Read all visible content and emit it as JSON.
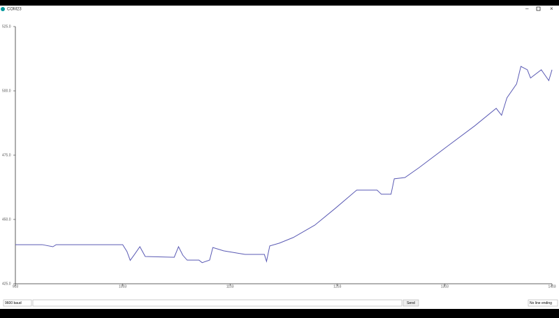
{
  "window_title": "COM23",
  "chart_data": {
    "type": "line",
    "x": [
      903,
      928,
      938,
      941,
      967,
      1003,
      1007,
      1010,
      1014,
      1019,
      1024,
      1051,
      1055,
      1059,
      1063,
      1074,
      1077,
      1084,
      1087,
      1097,
      1117,
      1135,
      1137,
      1140,
      1149,
      1162,
      1182,
      1201,
      1221,
      1240,
      1244,
      1253,
      1256,
      1266,
      1279,
      1305,
      1331,
      1351,
      1356,
      1361,
      1370,
      1374,
      1380,
      1383,
      1393,
      1400,
      1403
    ],
    "values": [
      440.2,
      440.2,
      439.4,
      440.2,
      440.2,
      440.2,
      437.5,
      434.1,
      436.4,
      439.4,
      435.6,
      435.3,
      439.4,
      436.1,
      434.2,
      434.2,
      433.2,
      434.2,
      439.1,
      437.8,
      436.4,
      436.4,
      433.7,
      439.7,
      440.8,
      443.0,
      447.8,
      454.3,
      461.4,
      461.4,
      459.8,
      459.8,
      465.8,
      466.3,
      470.1,
      478.3,
      486.4,
      493.2,
      490.5,
      497.3,
      502.7,
      509.5,
      508.2,
      505.0,
      508.2,
      504.0,
      508.2
    ],
    "color": "#5a5ab4",
    "xlim": [
      903,
      1403
    ],
    "xticks": [
      903,
      1003,
      1103,
      1203,
      1303,
      1403
    ],
    "ylim": [
      425,
      525
    ],
    "yticks": [
      {
        "value": 425,
        "label": "425.0"
      },
      {
        "value": 450,
        "label": "450.0"
      },
      {
        "value": 475,
        "label": "475.0"
      },
      {
        "value": 500,
        "label": "500.0"
      },
      {
        "value": 525,
        "label": "525.0"
      }
    ]
  },
  "footer": {
    "baud": "9600 baud",
    "send": "Send",
    "line_ending": "No line ending"
  }
}
